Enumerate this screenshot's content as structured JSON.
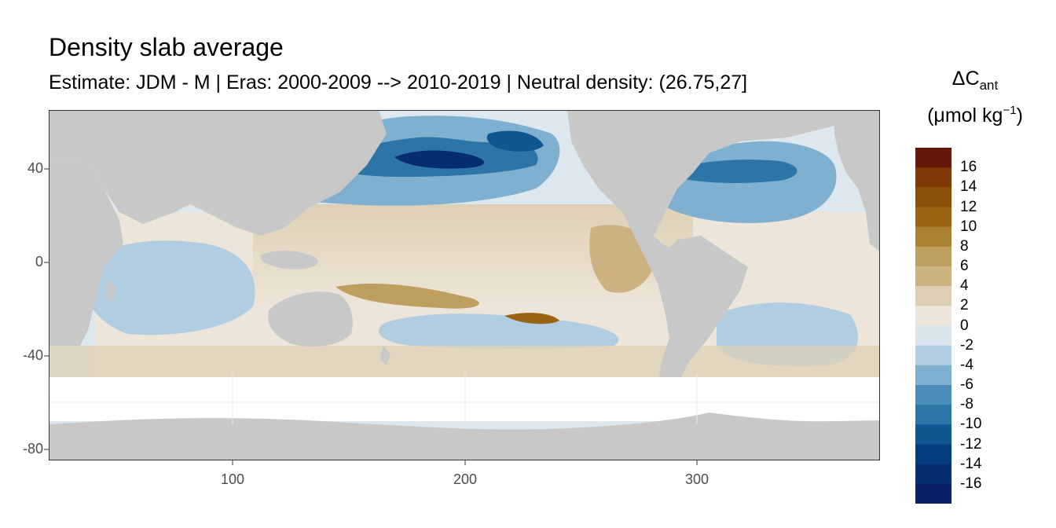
{
  "title": "Density slab average",
  "subtitle": "Estimate: JDM - M | Eras: 2000-2009 --> 2010-2019 | Neutral density: (26.75,27]",
  "legend": {
    "title_line1_symbol": "ΔC",
    "title_line1_sub": "ant",
    "title_line2_pre": "(μmol kg",
    "title_line2_sup": "−1",
    "title_line2_post": ")",
    "bins": [
      {
        "label": "16",
        "color": "#67180a"
      },
      {
        "label": "14",
        "color": "#7f3a06"
      },
      {
        "label": "12",
        "color": "#8c4f0a"
      },
      {
        "label": "10",
        "color": "#9a6412"
      },
      {
        "label": "8",
        "color": "#ac8230"
      },
      {
        "label": "6",
        "color": "#bf9f60"
      },
      {
        "label": "4",
        "color": "#cdb382"
      },
      {
        "label": "2",
        "color": "#ded0b4"
      },
      {
        "label": "0",
        "color": "#ede5d9"
      },
      {
        "label": "-2",
        "color": "#d9e5ed"
      },
      {
        "label": "-4",
        "color": "#b1cde1"
      },
      {
        "label": "-6",
        "color": "#7fb0d0"
      },
      {
        "label": "-8",
        "color": "#4a8dbb"
      },
      {
        "label": "-10",
        "color": "#2d74a7"
      },
      {
        "label": "-12",
        "color": "#105791"
      },
      {
        "label": "-14",
        "color": "#023e7e"
      },
      {
        "label": "-16",
        "color": "#052d70"
      },
      {
        "label": "",
        "color": "#08216a"
      }
    ]
  },
  "axes": {
    "x_ticks": [
      "100",
      "200",
      "300"
    ],
    "y_ticks": [
      "40",
      "0",
      "-40",
      "-80"
    ]
  },
  "colors": {
    "land": "#c8c8c8",
    "no_data": "#ffffff",
    "grid": "#ebebeb",
    "panel_border": "#333333"
  }
}
